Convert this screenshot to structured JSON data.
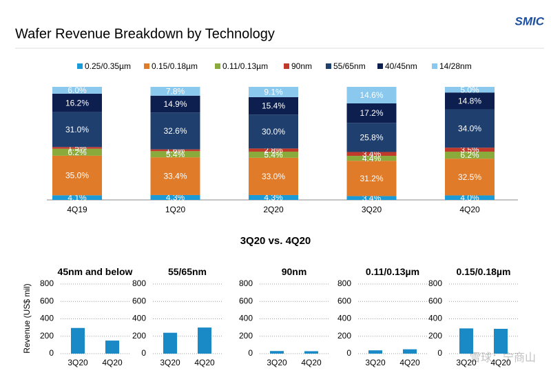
{
  "title": "Wafer Revenue Breakdown by Technology",
  "logo": "SMIC",
  "subtitle": "3Q20 vs. 4Q20",
  "watermark": "雪球：宁商山",
  "chart_data": [
    {
      "type": "bar",
      "stacked": true,
      "categories": [
        "4Q19",
        "1Q20",
        "2Q20",
        "3Q20",
        "4Q20"
      ],
      "ylim": [
        0,
        100
      ],
      "legend": "top",
      "series": [
        {
          "name": "0.25/0.35µm",
          "color": "#1a9ad6",
          "values": [
            4.1,
            4.3,
            4.3,
            3.4,
            4.0
          ],
          "value_labels": [
            "4.1%",
            "4.3%",
            "4.3%",
            "3.4%",
            "4.0%"
          ]
        },
        {
          "name": "0.15/0.18µm",
          "color": "#e07b2a",
          "values": [
            35.0,
            33.4,
            33.0,
            31.2,
            32.5
          ],
          "value_labels": [
            "35.0%",
            "33.4%",
            "33.0%",
            "31.2%",
            "32.5%"
          ]
        },
        {
          "name": "0.11/0.13µm",
          "color": "#8aab3c",
          "values": [
            6.2,
            5.4,
            5.4,
            4.4,
            6.2
          ],
          "value_labels": [
            "6.2%",
            "5.4%",
            "5.4%",
            "4.4%",
            "6.2%"
          ]
        },
        {
          "name": "90nm",
          "color": "#c0392b",
          "values": [
            1.5,
            1.6,
            2.8,
            3.4,
            3.5
          ],
          "value_labels": [
            "1.5%",
            "1.6%",
            "2.8%",
            "3.4%",
            "3.5%"
          ]
        },
        {
          "name": "55/65nm",
          "color": "#1f3f6e",
          "values": [
            31.0,
            32.6,
            30.0,
            25.8,
            34.0
          ],
          "value_labels": [
            "31.0%",
            "32.6%",
            "30.0%",
            "25.8%",
            "34.0%"
          ]
        },
        {
          "name": "40/45nm",
          "color": "#0d1f4e",
          "values": [
            16.2,
            14.9,
            15.4,
            17.2,
            14.8
          ],
          "value_labels": [
            "16.2%",
            "14.9%",
            "15.4%",
            "17.2%",
            "14.8%"
          ]
        },
        {
          "name": "14/28nm",
          "color": "#8ac8ee",
          "values": [
            6.0,
            7.8,
            9.1,
            14.6,
            5.0
          ],
          "value_labels": [
            "6.0%",
            "7.8%",
            "9.1%",
            "14.6%",
            "5.0%"
          ]
        }
      ]
    },
    {
      "type": "bar",
      "title": "45nm and below",
      "ylabel": "Revenue (US$  mil)",
      "categories": [
        "3Q20",
        "4Q20"
      ],
      "values": [
        295,
        150
      ],
      "color": "#1a8ac6",
      "ylim": [
        0,
        800
      ],
      "yticks": [
        0,
        200,
        400,
        600,
        800
      ],
      "grid": true
    },
    {
      "type": "bar",
      "title": "55/65nm",
      "categories": [
        "3Q20",
        "4Q20"
      ],
      "values": [
        240,
        300
      ],
      "color": "#1a8ac6",
      "ylim": [
        0,
        800
      ],
      "yticks": [
        0,
        200,
        400,
        600,
        800
      ],
      "grid": true
    },
    {
      "type": "bar",
      "title": "90nm",
      "categories": [
        "3Q20",
        "4Q20"
      ],
      "values": [
        30,
        28
      ],
      "color": "#1a8ac6",
      "ylim": [
        0,
        800
      ],
      "yticks": [
        0,
        200,
        400,
        600,
        800
      ],
      "grid": true
    },
    {
      "type": "bar",
      "title": "0.11/0.13µm",
      "categories": [
        "3Q20",
        "4Q20"
      ],
      "values": [
        38,
        50
      ],
      "color": "#1a8ac6",
      "ylim": [
        0,
        800
      ],
      "yticks": [
        0,
        200,
        400,
        600,
        800
      ],
      "grid": true
    },
    {
      "type": "bar",
      "title": "0.15/0.18µm",
      "categories": [
        "3Q20",
        "4Q20"
      ],
      "values": [
        290,
        285
      ],
      "color": "#1a8ac6",
      "ylim": [
        0,
        800
      ],
      "yticks": [
        0,
        200,
        400,
        600,
        800
      ],
      "grid": true
    }
  ]
}
